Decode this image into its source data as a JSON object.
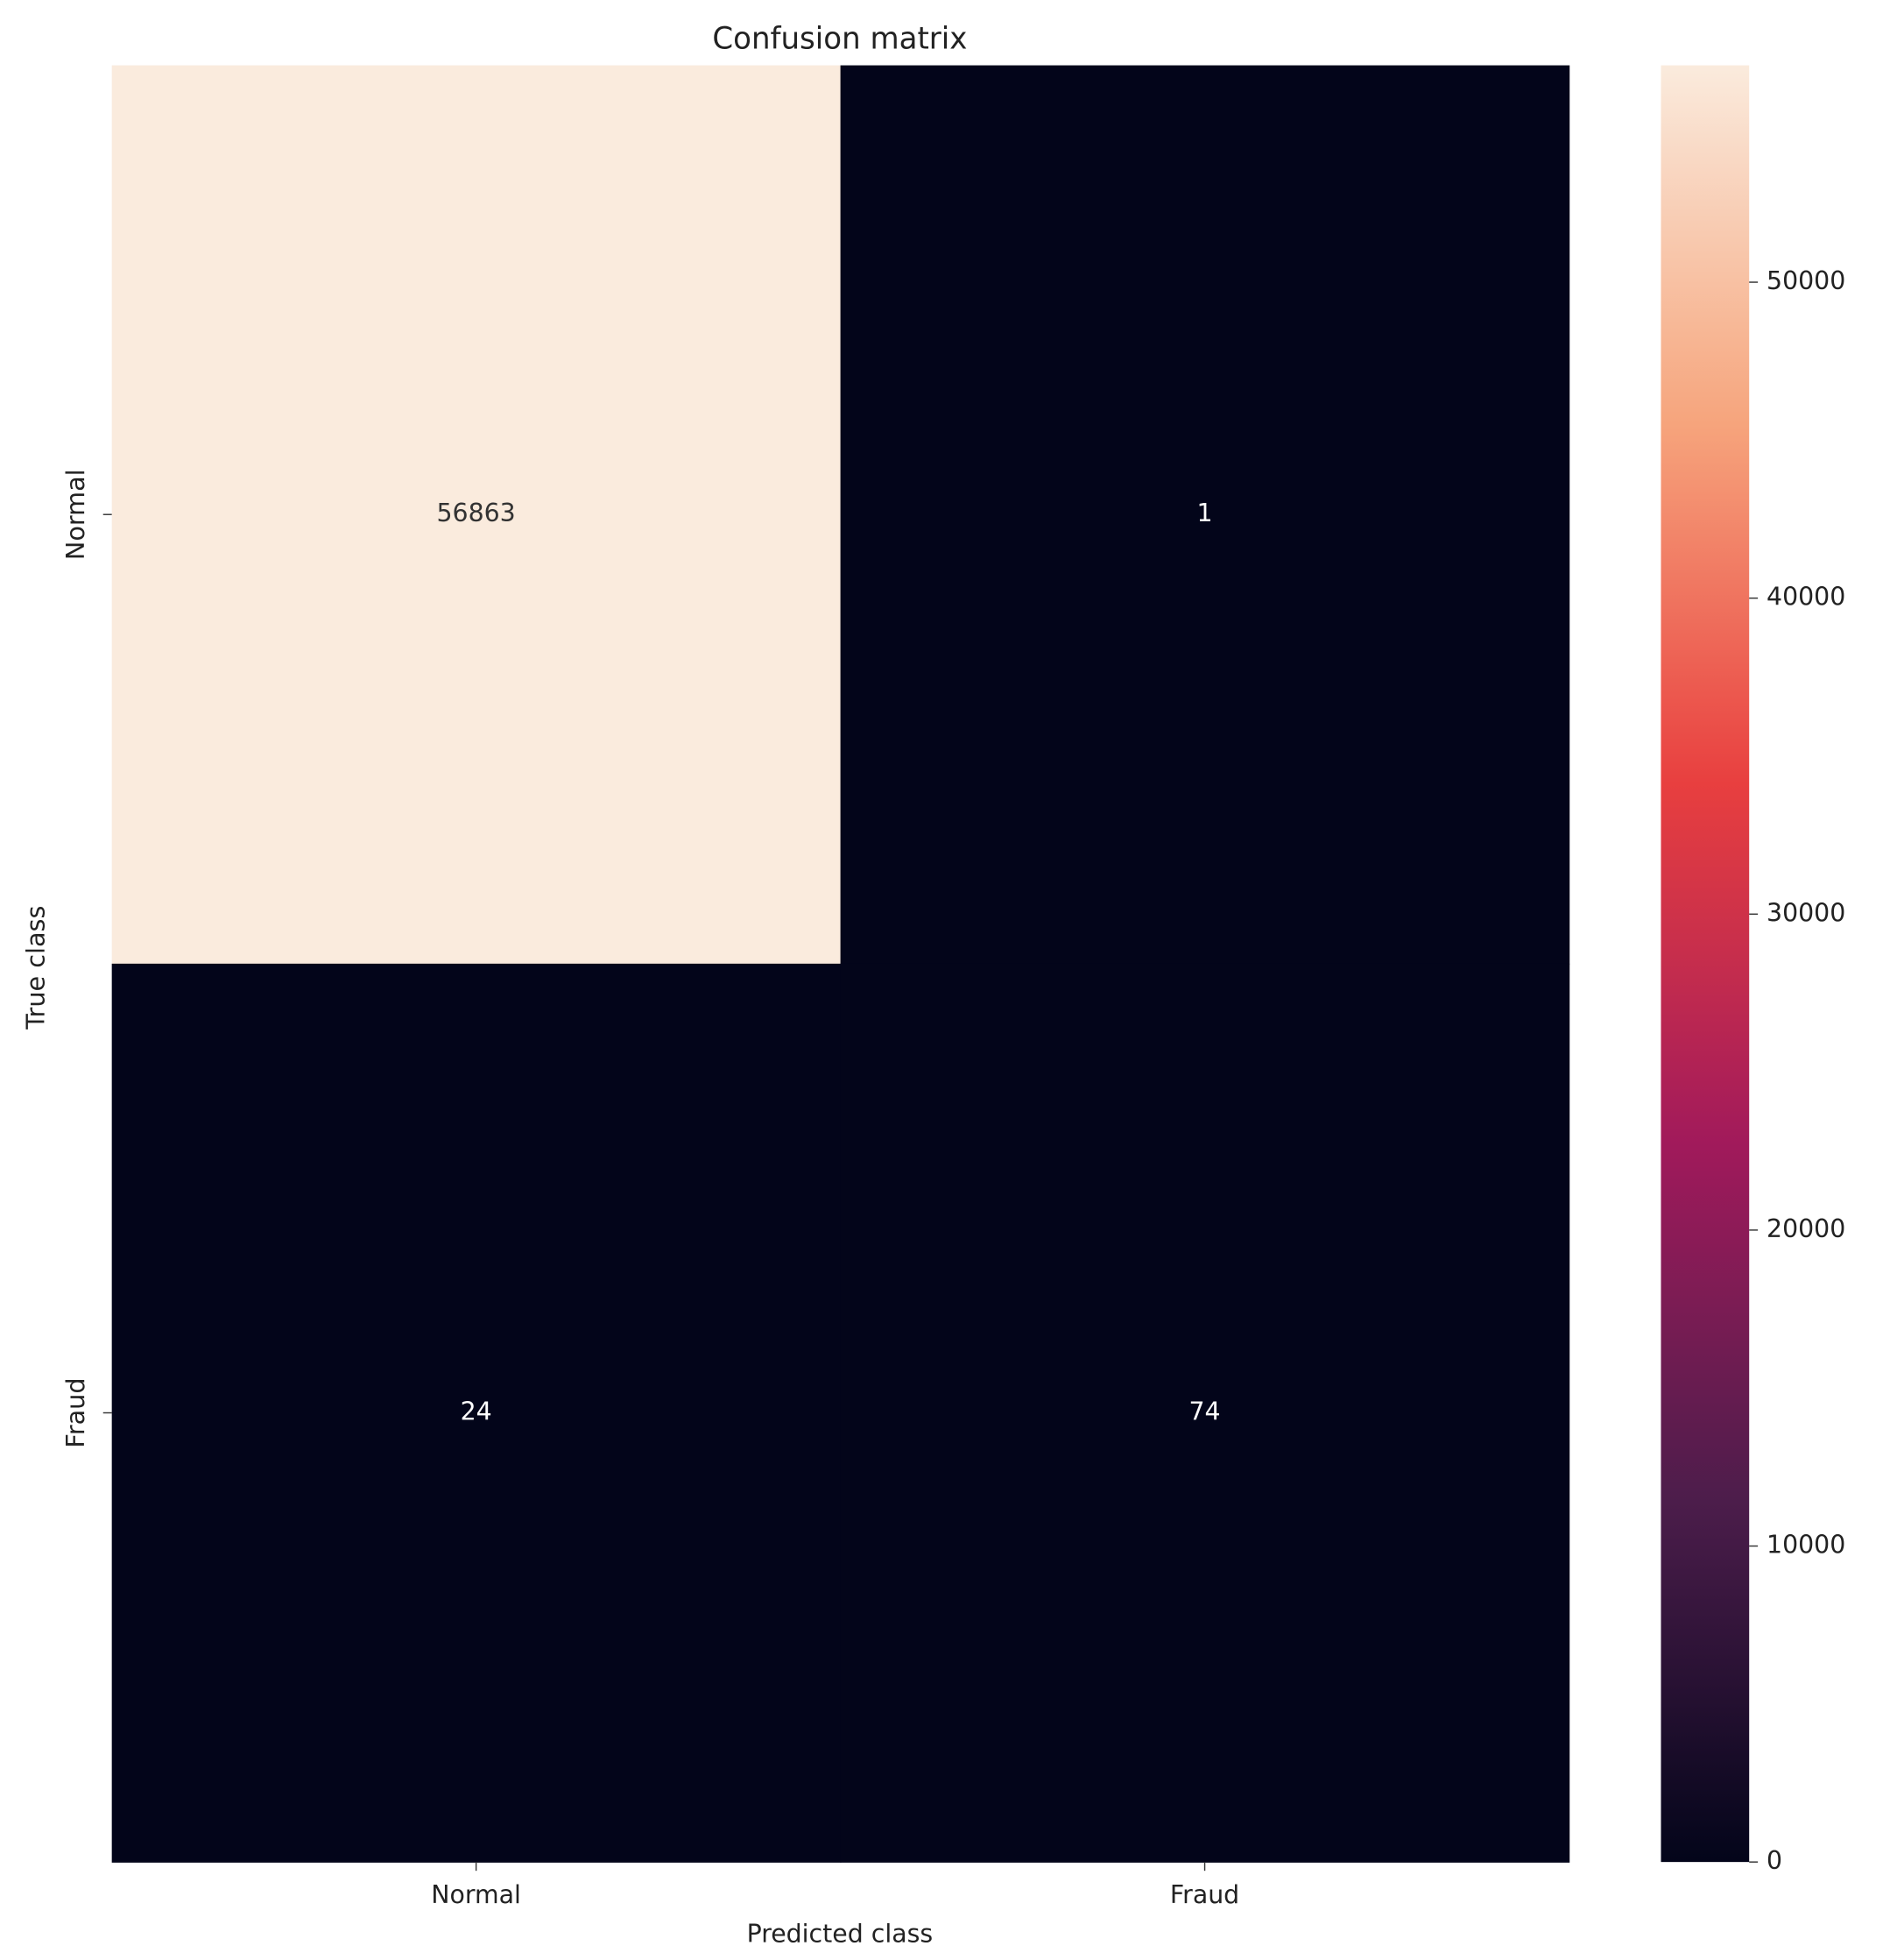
{
  "chart_data": {
    "type": "heatmap",
    "title": "Confusion matrix",
    "x_label": "Predicted class",
    "y_label": "True class",
    "x_categories": [
      "Normal",
      "Fraud"
    ],
    "y_categories": [
      "Normal",
      "Fraud"
    ],
    "values": [
      [
        56863,
        1
      ],
      [
        24,
        74
      ]
    ],
    "colorscale": [
      "#03051a",
      "#4c1d4b",
      "#a11a5b",
      "#e83f3f",
      "#f6a47c",
      "#faebdd"
    ],
    "clim": [
      0,
      56863
    ],
    "cticks": [
      0,
      10000,
      20000,
      30000,
      40000,
      50000
    ]
  }
}
